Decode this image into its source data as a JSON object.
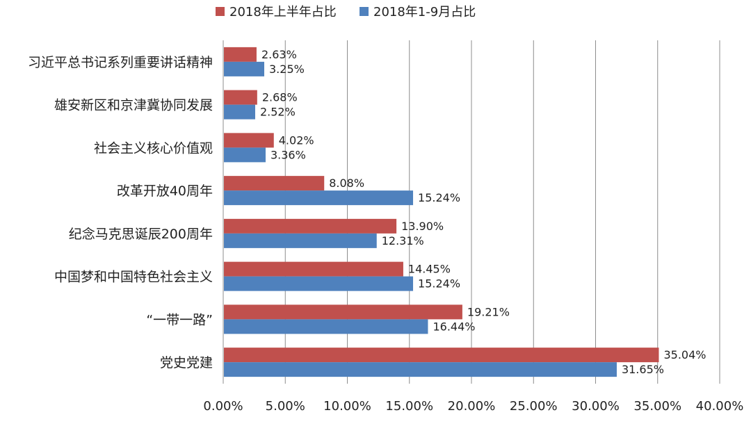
{
  "chart_data": {
    "type": "bar",
    "orientation": "horizontal",
    "categories": [
      "习近平总书记系列重要讲话精神",
      "雄安新区和京津冀协同发展",
      "社会主义核心价值观",
      "改革开放40周年",
      "纪念马克思诞辰200周年",
      "中国梦和中国特色社会主义",
      "“一带一路”",
      "党史党建"
    ],
    "series": [
      {
        "name": "2018年上半年占比",
        "color": "#C0504D",
        "values": [
          2.63,
          2.68,
          4.02,
          8.08,
          13.9,
          14.45,
          19.21,
          35.04
        ],
        "labels": [
          "2.63%",
          "2.68%",
          "4.02%",
          "8.08%",
          "13.90%",
          "14.45%",
          "19.21%",
          "35.04%"
        ]
      },
      {
        "name": "2018年1-9月占比",
        "color": "#4F81BD",
        "values": [
          3.25,
          2.52,
          3.36,
          15.24,
          12.31,
          15.24,
          16.44,
          31.65
        ],
        "labels": [
          "3.25%",
          "2.52%",
          "3.36%",
          "15.24%",
          "12.31%",
          "15.24%",
          "16.44%",
          "31.65%"
        ]
      }
    ],
    "xlim": [
      0,
      40
    ],
    "ticks": [
      0,
      5,
      10,
      15,
      20,
      25,
      30,
      35,
      40
    ],
    "tick_labels": [
      "0.00%",
      "5.00%",
      "10.00%",
      "15.00%",
      "20.00%",
      "25.00%",
      "30.00%",
      "35.00%",
      "40.00%"
    ],
    "grid": true,
    "legend_position": "top",
    "title": "",
    "xlabel": "",
    "ylabel": ""
  }
}
